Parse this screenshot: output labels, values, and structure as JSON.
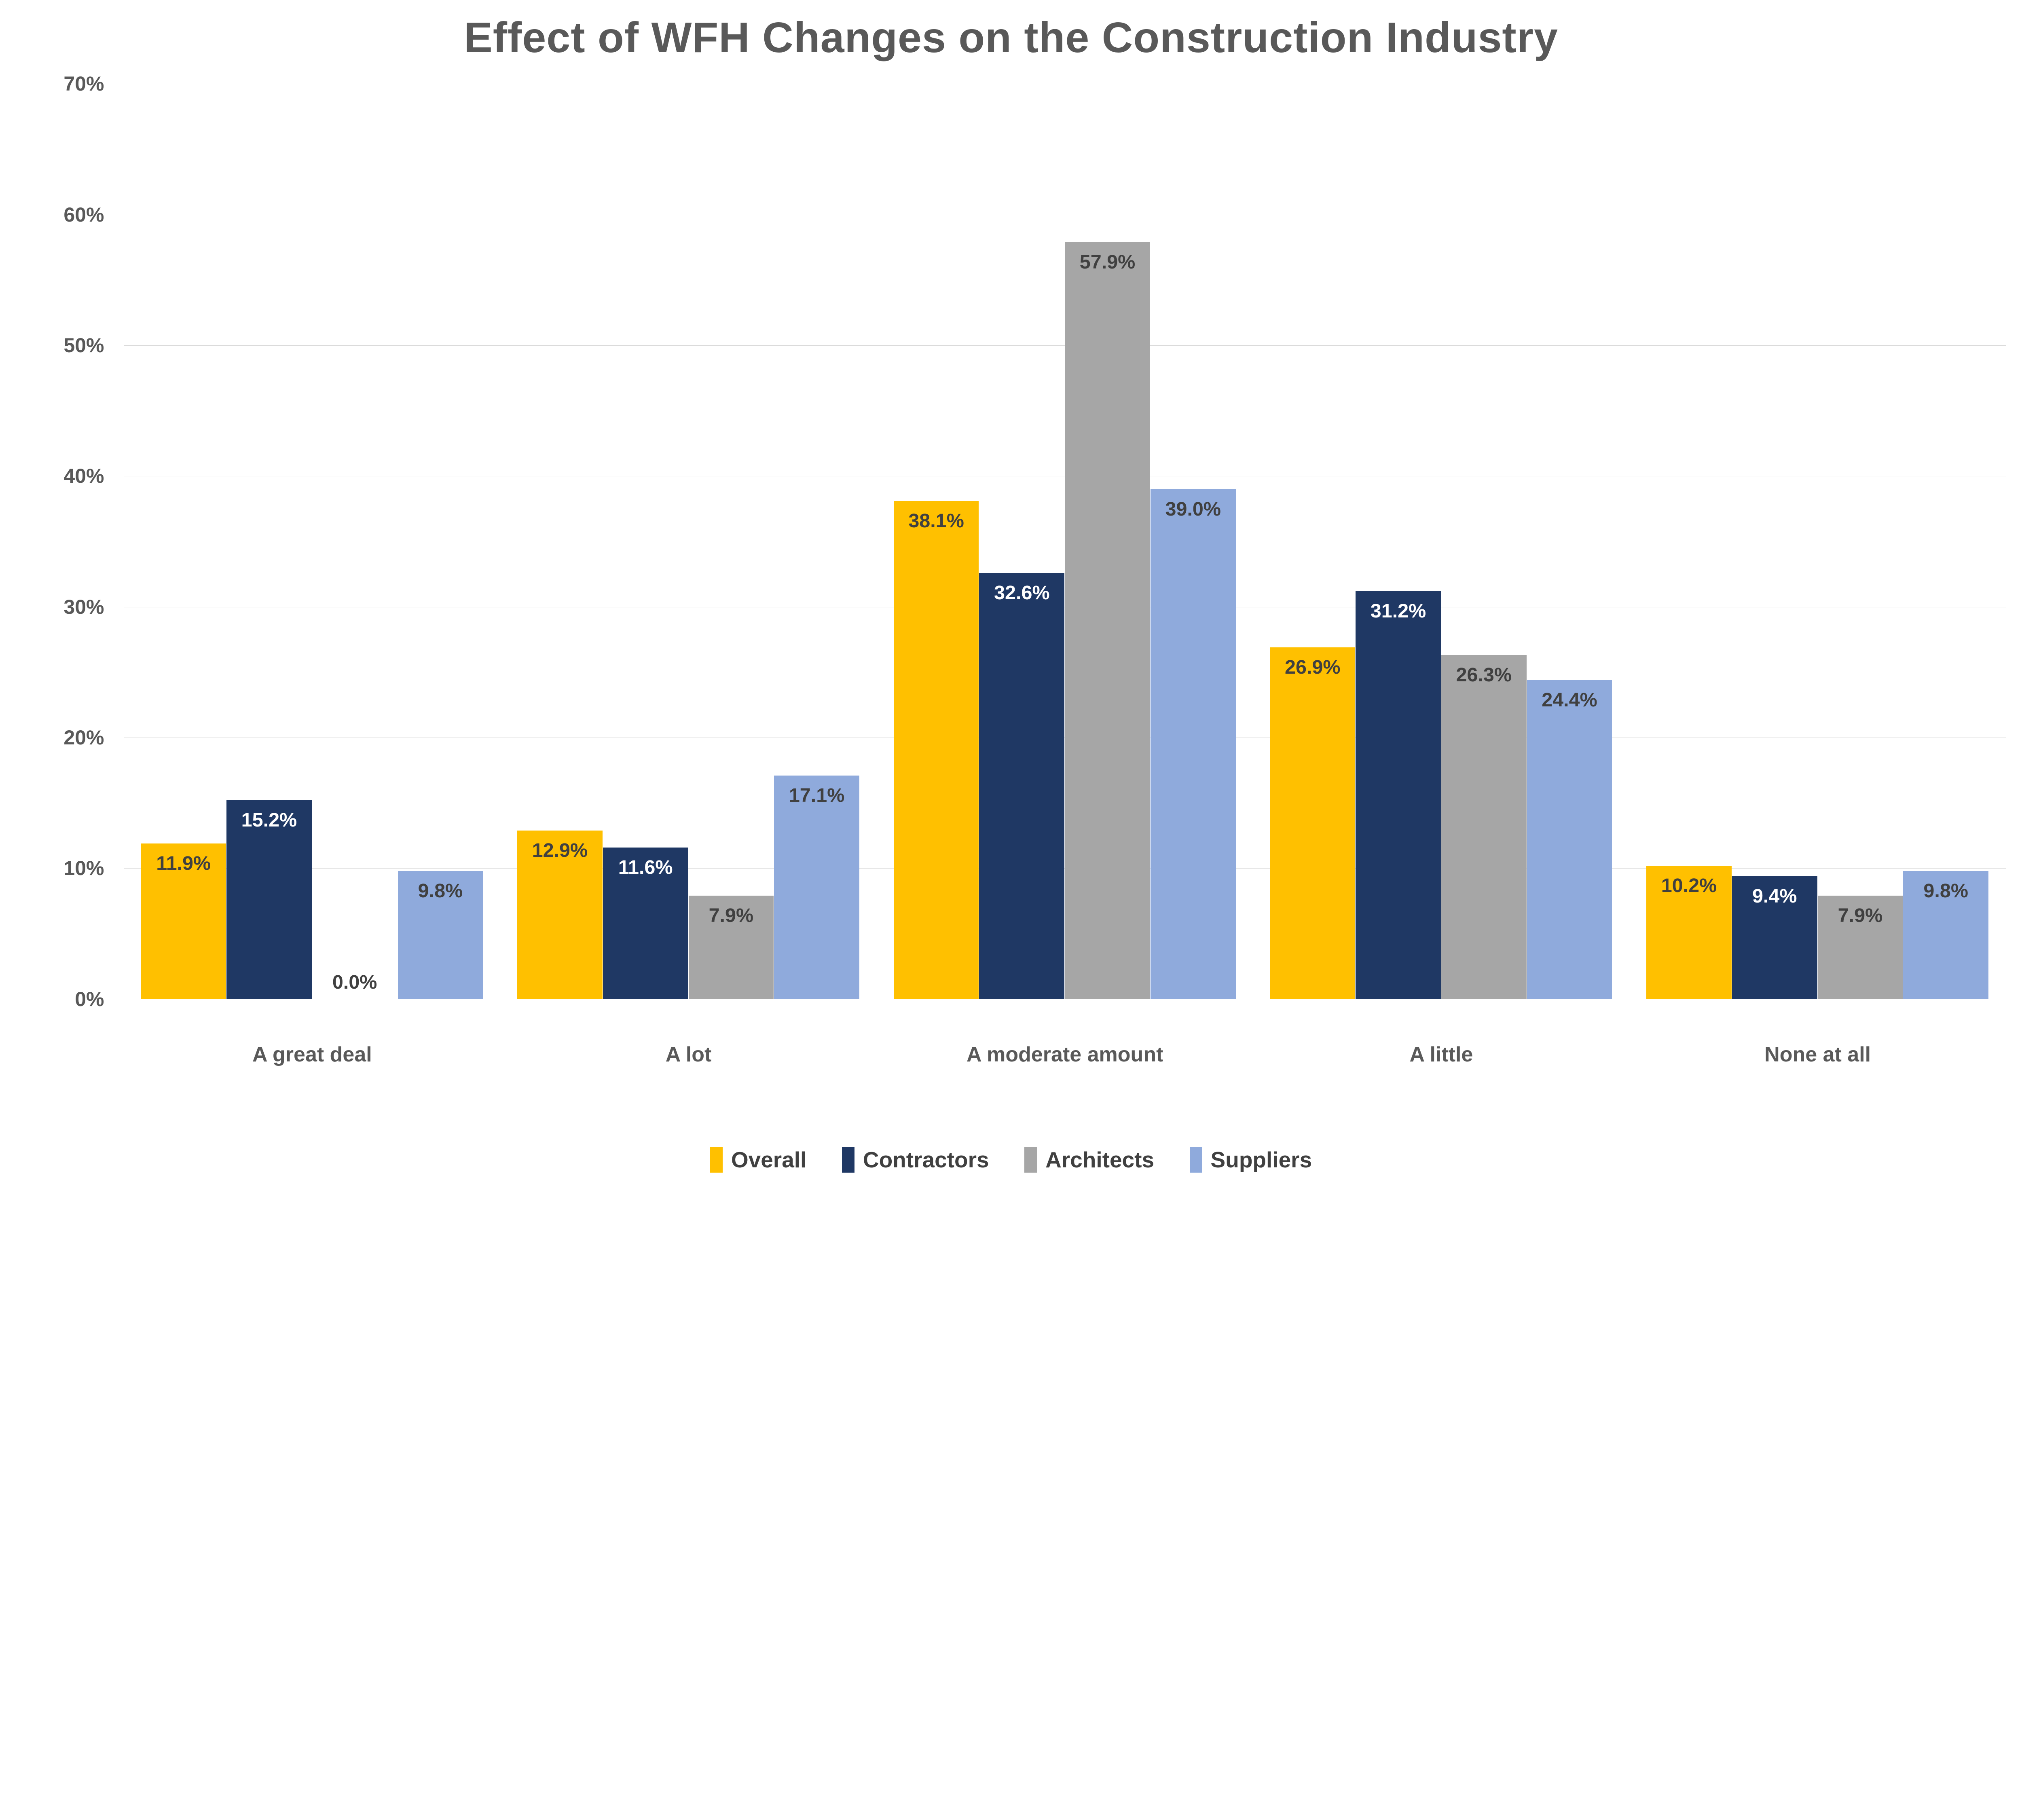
{
  "chart_data": {
    "type": "bar",
    "title": "Effect of WFH Changes on the Construction Industry",
    "categories": [
      "A great deal",
      "A lot",
      "A moderate amount",
      "A little",
      "None at all"
    ],
    "series": [
      {
        "name": "Overall",
        "color": "#FFC000",
        "label_color": "#404040",
        "values": [
          11.9,
          12.9,
          38.1,
          26.9,
          10.2
        ],
        "labels": [
          "11.9%",
          "12.9%",
          "38.1%",
          "26.9%",
          "10.2%"
        ]
      },
      {
        "name": "Contractors",
        "color": "#1F3864",
        "label_color": "#FFFFFF",
        "values": [
          15.2,
          11.6,
          32.6,
          31.2,
          9.4
        ],
        "labels": [
          "15.2%",
          "11.6%",
          "32.6%",
          "31.2%",
          "9.4%"
        ]
      },
      {
        "name": "Architects",
        "color": "#A6A6A6",
        "label_color": "#404040",
        "values": [
          0.0,
          7.9,
          57.9,
          26.3,
          7.9
        ],
        "labels": [
          "0.0%",
          "7.9%",
          "57.9%",
          "26.3%",
          "7.9%"
        ]
      },
      {
        "name": "Suppliers",
        "color": "#8FAADC",
        "label_color": "#404040",
        "values": [
          9.8,
          17.1,
          39.0,
          24.4,
          9.8
        ],
        "labels": [
          "9.8%",
          "17.1%",
          "39.0%",
          "24.4%",
          "9.8%"
        ]
      }
    ],
    "ylim": [
      0,
      70
    ],
    "ytick_step": 10,
    "ytick_suffix": "%",
    "grid": true,
    "legend_position": "bottom",
    "grid_color": "#D9D9D9",
    "axis_line_color": "#C8C8C8",
    "text_color": "#595959",
    "data_label_color": "#404040"
  }
}
